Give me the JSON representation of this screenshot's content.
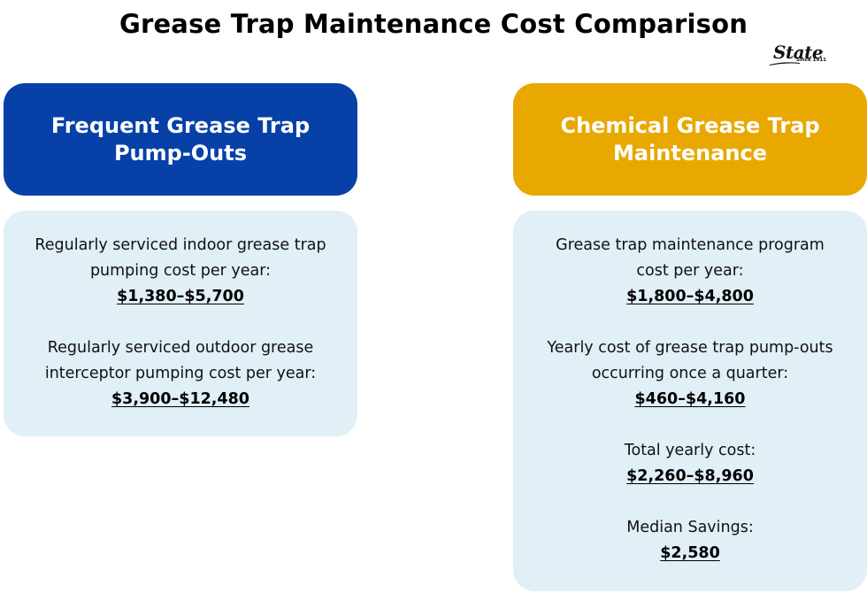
{
  "title": "Grease Trap Maintenance Cost Comparison",
  "logo": {
    "word": "State",
    "tagline": "Since 1911"
  },
  "columns": [
    {
      "header_line1": "Frequent Grease Trap",
      "header_line2": "Pump-Outs",
      "header_color": "#0741a8",
      "items": [
        {
          "line1": "Regularly serviced indoor grease trap",
          "line2": "pumping cost per year:",
          "price": "$1,380–$5,700"
        },
        {
          "line1": "Regularly serviced outdoor grease",
          "line2": "interceptor pumping cost per year:",
          "price": "$3,900–$12,480"
        }
      ]
    },
    {
      "header_line1": "Chemical Grease Trap",
      "header_line2": "Maintenance",
      "header_color": "#e8a800",
      "items": [
        {
          "line1": "Grease trap maintenance program",
          "line2": "cost per year:",
          "price": "$1,800–$4,800"
        },
        {
          "line1": "Yearly cost of grease trap pump-outs",
          "line2": "occurring once a quarter:",
          "price": "$460–$4,160"
        },
        {
          "line1": "Total yearly cost:",
          "price": "$2,260–$8,960"
        },
        {
          "line1": "Median Savings:",
          "price": "$2,580"
        }
      ]
    }
  ],
  "colors": {
    "body_background": "#e1eff7",
    "text": "#111111"
  }
}
